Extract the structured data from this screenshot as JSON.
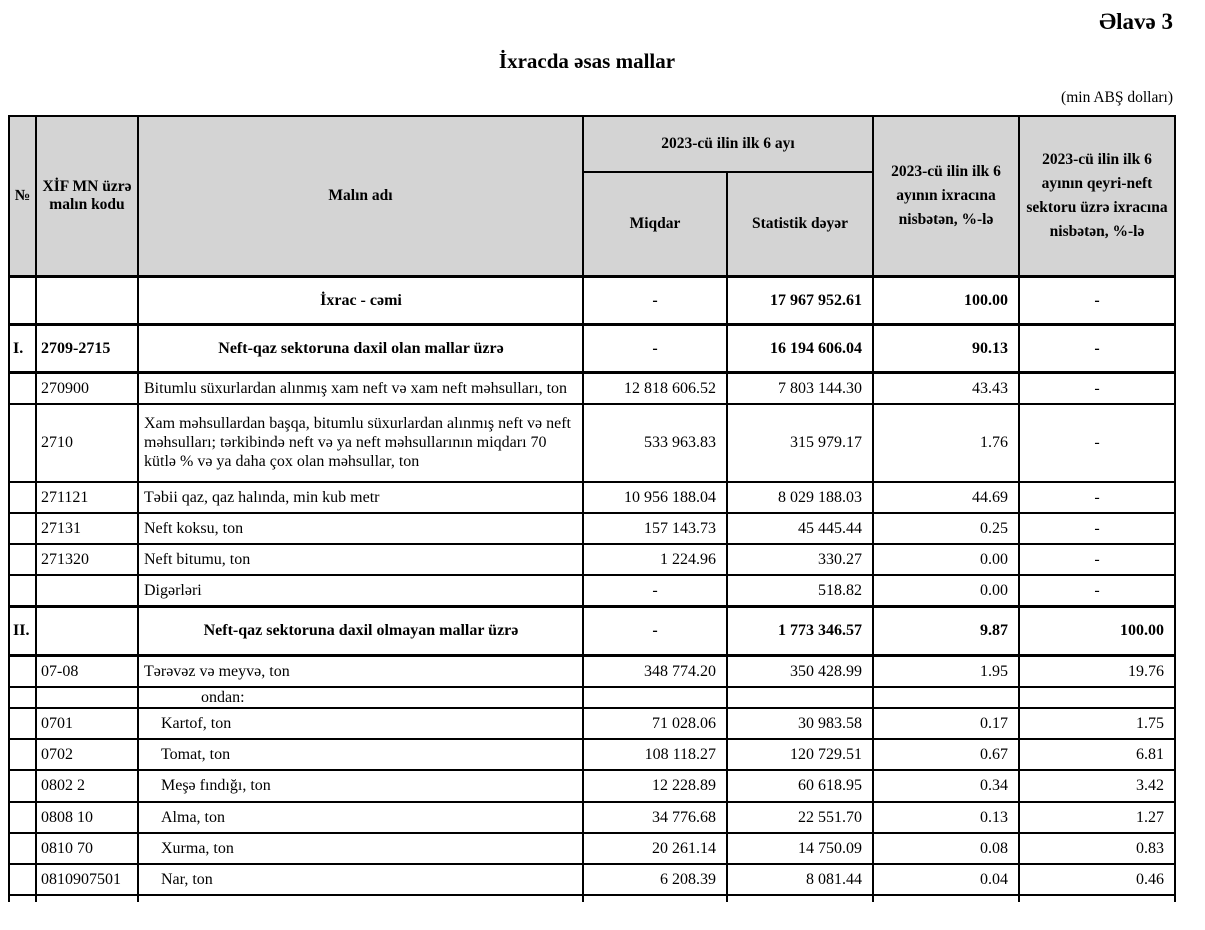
{
  "page": {
    "appendix_label": "Əlavə 3",
    "title": "İxracda əsas mallar",
    "unit_note": "(min ABŞ dolları)"
  },
  "table": {
    "header": {
      "no": "№",
      "code": "XİF MN üzrə malın kodu",
      "name": "Malın adı",
      "period_group": "2023-cü ilin ilk 6 ayı",
      "qty": "Miqdar",
      "value": "Statistik dəyər",
      "pct_total": "2023-cü ilin ilk 6 ayının ixracına nisbətən, %-lə",
      "pct_nonoil": "2023-cü ilin  ilk 6 ayının qeyri-neft sektoru üzrə ixracına nisbətən, %-lə"
    },
    "rows": [
      {
        "no": "",
        "code": "",
        "name": "İxrac - cəmi",
        "qty": "-",
        "value": "17 967 952.61",
        "pct": "100.00",
        "pn": "-",
        "cls": "sec",
        "name_cls": ""
      },
      {
        "no": "I.",
        "code": "2709-2715",
        "name": "Neft-qaz sektoruna daxil olan mallar üzrə",
        "qty": "-",
        "value": "16 194 606.04",
        "pct": "90.13",
        "pn": "-",
        "cls": "sec",
        "name_cls": ""
      },
      {
        "no": "",
        "code": "270900",
        "name": "Bitumlu süxurlardan alınmış xam neft və xam neft məhsulları, ton",
        "qty": "12 818 606.52",
        "value": "7 803 144.30",
        "pct": "43.43",
        "pn": "-",
        "cls": "",
        "name_cls": ""
      },
      {
        "no": "",
        "code": "2710",
        "name": "Xam məhsullardan başqa, bitumlu süxurlardan alınmış neft və neft məhsulları; tərkibində neft və ya neft məhsullarının miqdarı 70 kütlə % və ya daha çox olan məhsullar, ton",
        "qty": "533 963.83",
        "value": "315 979.17",
        "pct": "1.76",
        "pn": "-",
        "cls": "tall",
        "name_cls": ""
      },
      {
        "no": "",
        "code": "271121",
        "name": "Təbii qaz, qaz halında, min kub metr",
        "qty": "10 956 188.04",
        "value": "8 029 188.03",
        "pct": "44.69",
        "pn": "-",
        "cls": "",
        "name_cls": ""
      },
      {
        "no": "",
        "code": "27131",
        "name": "Neft koksu, ton",
        "qty": "157 143.73",
        "value": "45 445.44",
        "pct": "0.25",
        "pn": "-",
        "cls": "",
        "name_cls": ""
      },
      {
        "no": "",
        "code": "271320",
        "name": "Neft bitumu, ton",
        "qty": "1 224.96",
        "value": "330.27",
        "pct": "0.00",
        "pn": "-",
        "cls": "",
        "name_cls": ""
      },
      {
        "no": "",
        "code": "",
        "name": "Digərləri",
        "qty": "-",
        "value": "518.82",
        "pct": "0.00",
        "pn": "-",
        "cls": "",
        "name_cls": ""
      },
      {
        "no": "II.",
        "code": "",
        "name": "Neft-qaz sektoruna daxil olmayan mallar üzrə",
        "qty": "-",
        "value": "1 773 346.57",
        "pct": "9.87",
        "pn": "100.00",
        "cls": "sec",
        "name_cls": ""
      },
      {
        "no": "",
        "code": "07-08",
        "name": "Tərəvəz və meyvə, ton",
        "qty": "348 774.20",
        "value": "350 428.99",
        "pct": "1.95",
        "pn": "19.76",
        "cls": "",
        "name_cls": ""
      },
      {
        "no": "",
        "code": "",
        "name": "ondan:",
        "qty": "",
        "value": "",
        "pct": "",
        "pn": "",
        "cls": "short",
        "name_cls": "label"
      },
      {
        "no": "",
        "code": "0701",
        "name": "Kartof, ton",
        "qty": "71 028.06",
        "value": "30 983.58",
        "pct": "0.17",
        "pn": "1.75",
        "cls": "",
        "name_cls": "indent"
      },
      {
        "no": "",
        "code": "0702",
        "name": "Tomat, ton",
        "qty": "108 118.27",
        "value": "120 729.51",
        "pct": "0.67",
        "pn": "6.81",
        "cls": "",
        "name_cls": "indent"
      },
      {
        "no": "",
        "code": "0802 2",
        "name": "Meşə fındığı, ton",
        "qty": "12 228.89",
        "value": "60 618.95",
        "pct": "0.34",
        "pn": "3.42",
        "cls": "",
        "name_cls": "indent"
      },
      {
        "no": "",
        "code": "0808 10",
        "name": "Alma, ton",
        "qty": "34 776.68",
        "value": "22 551.70",
        "pct": "0.13",
        "pn": "1.27",
        "cls": "",
        "name_cls": "indent"
      },
      {
        "no": "",
        "code": "0810 70",
        "name": "Xurma, ton",
        "qty": "20 261.14",
        "value": "14 750.09",
        "pct": "0.08",
        "pn": "0.83",
        "cls": "",
        "name_cls": "indent"
      },
      {
        "no": "",
        "code": "0810907501",
        "name": "Nar, ton",
        "qty": "6 208.39",
        "value": "8 081.44",
        "pct": "0.04",
        "pn": "0.46",
        "cls": "",
        "name_cls": "indent"
      }
    ]
  }
}
